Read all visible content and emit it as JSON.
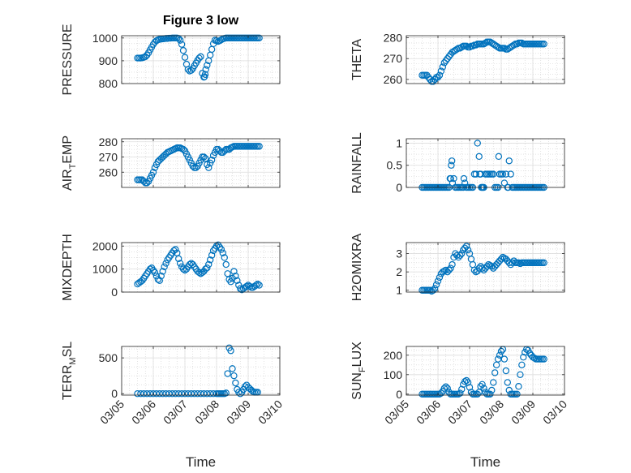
{
  "figure": {
    "xlabel": "Time",
    "marker_color": "#0072BD",
    "xticks": [
      "03/05",
      "03/06",
      "03/07",
      "03/08",
      "03/09",
      "03/10"
    ],
    "xlim": [
      0,
      5
    ]
  },
  "chart_data": [
    {
      "type": "scatter",
      "title": "Figure 3 low",
      "ylabel": "PRESSURE",
      "ylabel_sub": "",
      "ylabel_post": "",
      "ylim": [
        800,
        1010
      ],
      "yticks": [
        800,
        900,
        1000
      ],
      "ytick_labels": [
        "800",
        "900",
        "1000"
      ],
      "show_xticklabels": false,
      "grid": "on",
      "x": [
        0.5,
        0.55,
        0.6,
        0.65,
        0.7,
        0.75,
        0.8,
        0.85,
        0.9,
        0.95,
        1.0,
        1.05,
        1.1,
        1.15,
        1.2,
        1.25,
        1.3,
        1.35,
        1.4,
        1.45,
        1.5,
        1.55,
        1.6,
        1.65,
        1.7,
        1.75,
        1.8,
        1.85,
        1.9,
        1.95,
        2.0,
        2.05,
        2.1,
        2.15,
        2.2,
        2.25,
        2.3,
        2.35,
        2.4,
        2.45,
        2.5,
        2.55,
        2.6,
        2.62,
        2.64,
        2.66,
        2.7,
        2.75,
        2.8,
        2.85,
        2.9,
        2.95,
        3.0,
        3.05,
        3.1,
        3.15,
        3.2,
        3.25,
        3.3,
        3.35,
        3.4,
        3.45,
        3.5,
        3.55,
        3.6,
        3.65,
        3.7,
        3.75,
        3.8,
        3.85,
        3.9,
        3.95,
        4.0,
        4.05,
        4.1,
        4.15,
        4.2,
        4.25,
        4.3,
        4.35
      ],
      "y": [
        912,
        912,
        912,
        913,
        915,
        918,
        925,
        935,
        948,
        960,
        972,
        982,
        988,
        992,
        994,
        995,
        996,
        997,
        998,
        998,
        999,
        999,
        1000,
        1000,
        1000,
        1000,
        998,
        990,
        972,
        945,
        915,
        885,
        862,
        855,
        858,
        866,
        878,
        890,
        902,
        912,
        918,
        845,
        828,
        830,
        840,
        862,
        880,
        900,
        925,
        950,
        975,
        990,
        988,
        985,
        988,
        992,
        996,
        998,
        1000,
        1000,
        1000,
        1000,
        1000,
        1000,
        1000,
        1000,
        1000,
        1000,
        1000,
        1000,
        1000,
        1000,
        1000,
        1000,
        1000,
        1000,
        1000,
        1000,
        1000,
        1000
      ]
    },
    {
      "type": "scatter",
      "title": "",
      "ylabel": "THETA",
      "ylabel_sub": "",
      "ylabel_post": "",
      "ylim": [
        258,
        281
      ],
      "yticks": [
        260,
        270,
        280
      ],
      "ytick_labels": [
        "260",
        "270",
        "280"
      ],
      "show_xticklabels": false,
      "grid": "on",
      "x": [
        0.5,
        0.55,
        0.6,
        0.65,
        0.7,
        0.75,
        0.8,
        0.85,
        0.9,
        0.95,
        1.0,
        1.05,
        1.1,
        1.15,
        1.2,
        1.25,
        1.3,
        1.35,
        1.4,
        1.45,
        1.5,
        1.55,
        1.6,
        1.65,
        1.7,
        1.75,
        1.8,
        1.85,
        1.9,
        1.95,
        2.0,
        2.05,
        2.1,
        2.15,
        2.2,
        2.25,
        2.3,
        2.35,
        2.4,
        2.45,
        2.5,
        2.55,
        2.6,
        2.65,
        2.7,
        2.75,
        2.8,
        2.85,
        2.9,
        2.95,
        3.0,
        3.05,
        3.1,
        3.15,
        3.2,
        3.25,
        3.3,
        3.35,
        3.4,
        3.45,
        3.5,
        3.55,
        3.6,
        3.65,
        3.7,
        3.75,
        3.8,
        3.85,
        3.9,
        3.95,
        4.0,
        4.05,
        4.1,
        4.15,
        4.2,
        4.25,
        4.3,
        4.35
      ],
      "y": [
        262,
        262,
        262,
        262,
        261,
        260,
        259,
        259,
        260,
        261,
        261,
        262,
        264,
        266,
        268,
        269,
        270,
        271,
        272,
        273,
        273.5,
        274,
        274.5,
        275,
        275,
        275.5,
        276,
        276,
        276,
        275.5,
        275.5,
        276,
        276,
        276.5,
        276.5,
        277,
        277,
        277,
        277,
        277,
        277.5,
        278,
        278,
        278,
        277.5,
        277,
        276.5,
        276,
        275.5,
        275,
        275,
        275,
        275,
        274.5,
        274.5,
        275,
        275.5,
        276,
        276.5,
        277,
        277,
        277.5,
        277.5,
        277.5,
        277,
        277,
        277,
        277,
        277,
        277,
        277,
        277,
        277,
        277,
        277,
        277,
        277,
        277
      ]
    },
    {
      "type": "scatter",
      "title": "",
      "ylabel": "AIR",
      "ylabel_sub": "T",
      "ylabel_post": "EMP",
      "ylim": [
        250,
        282
      ],
      "yticks": [
        260,
        270,
        280
      ],
      "ytick_labels": [
        "260",
        "270",
        "280"
      ],
      "show_xticklabels": false,
      "grid": "on",
      "x": [
        0.5,
        0.55,
        0.6,
        0.65,
        0.7,
        0.75,
        0.8,
        0.85,
        0.9,
        0.95,
        1.0,
        1.05,
        1.1,
        1.15,
        1.2,
        1.25,
        1.3,
        1.35,
        1.4,
        1.45,
        1.5,
        1.55,
        1.6,
        1.65,
        1.7,
        1.75,
        1.8,
        1.85,
        1.9,
        1.95,
        2.0,
        2.05,
        2.1,
        2.15,
        2.2,
        2.25,
        2.3,
        2.35,
        2.4,
        2.45,
        2.5,
        2.55,
        2.6,
        2.65,
        2.7,
        2.75,
        2.8,
        2.85,
        2.9,
        2.95,
        3.0,
        3.05,
        3.1,
        3.15,
        3.2,
        3.25,
        3.3,
        3.35,
        3.4,
        3.45,
        3.5,
        3.55,
        3.6,
        3.65,
        3.7,
        3.75,
        3.8,
        3.85,
        3.9,
        3.95,
        4.0,
        4.05,
        4.1,
        4.15,
        4.2,
        4.25,
        4.3,
        4.35
      ],
      "y": [
        255,
        255,
        255,
        255,
        254,
        253,
        253,
        254,
        256,
        258,
        260,
        263,
        265,
        267,
        268,
        269,
        270,
        271,
        272,
        273,
        273.5,
        274,
        274.5,
        275,
        275.5,
        276,
        276,
        276,
        275.5,
        275,
        274,
        272,
        270,
        268,
        266,
        264,
        263,
        263,
        264,
        266,
        268,
        270,
        270,
        269,
        265,
        263,
        266,
        268,
        271,
        273,
        275,
        275,
        274,
        273,
        273,
        274,
        275,
        275,
        275,
        276,
        276.5,
        277,
        277,
        277,
        277,
        277,
        277,
        277,
        277,
        277,
        277,
        277,
        277,
        277,
        277,
        277,
        277,
        277
      ]
    },
    {
      "type": "scatter",
      "title": "",
      "ylabel": "RAINFALL",
      "ylabel_sub": "",
      "ylabel_post": "",
      "ylim": [
        0,
        1.1
      ],
      "yticks": [
        0,
        0.5,
        1
      ],
      "ytick_labels": [
        "0",
        "0.5",
        "1"
      ],
      "show_xticklabels": false,
      "grid": "on",
      "x": [
        0.5,
        0.55,
        0.6,
        0.65,
        0.7,
        0.75,
        0.8,
        0.85,
        0.9,
        0.95,
        1.0,
        1.05,
        1.1,
        1.15,
        1.2,
        1.25,
        1.3,
        1.35,
        1.38,
        1.4,
        1.42,
        1.44,
        1.46,
        1.5,
        1.55,
        1.6,
        1.65,
        1.7,
        1.75,
        1.8,
        1.82,
        1.85,
        1.9,
        1.95,
        2.0,
        2.05,
        2.1,
        2.15,
        2.2,
        2.25,
        2.3,
        2.32,
        2.35,
        2.37,
        2.4,
        2.42,
        2.45,
        2.5,
        2.55,
        2.6,
        2.65,
        2.7,
        2.75,
        2.8,
        2.85,
        2.9,
        2.92,
        2.95,
        3.0,
        3.05,
        3.1,
        3.15,
        3.2,
        3.22,
        3.25,
        3.3,
        3.35,
        3.4,
        3.45,
        3.5,
        3.55,
        3.6,
        3.65,
        3.7,
        3.75,
        3.8,
        3.85,
        3.9,
        3.95,
        4.0,
        4.05,
        4.1,
        4.15,
        4.2,
        4.25,
        4.3,
        4.35
      ],
      "y": [
        0,
        0,
        0,
        0,
        0,
        0,
        0,
        0,
        0,
        0,
        0,
        0,
        0,
        0,
        0,
        0,
        0,
        0,
        0.2,
        0.2,
        0.5,
        0.6,
        0.1,
        0.2,
        0,
        0,
        0,
        0,
        0,
        0,
        0.2,
        0.1,
        0,
        0,
        0,
        0,
        0,
        0.3,
        0.3,
        1.0,
        0.7,
        0.3,
        0.3,
        0,
        0,
        0,
        0,
        0.3,
        0.3,
        0.3,
        0.3,
        0.3,
        0.3,
        0,
        0,
        0,
        0.7,
        0.3,
        0.3,
        0.3,
        0.1,
        0.3,
        0,
        0,
        0.6,
        0.3,
        0,
        0,
        0,
        0,
        0,
        0,
        0,
        0,
        0,
        0,
        0,
        0,
        0,
        0,
        0,
        0,
        0,
        0,
        0,
        0,
        0
      ]
    },
    {
      "type": "scatter",
      "title": "",
      "ylabel": "MIXDEPTH",
      "ylabel_sub": "",
      "ylabel_post": "",
      "ylim": [
        0,
        2150
      ],
      "yticks": [
        0,
        1000,
        2000
      ],
      "ytick_labels": [
        "0",
        "1000",
        "2000"
      ],
      "show_xticklabels": false,
      "grid": "on",
      "x": [
        0.5,
        0.55,
        0.6,
        0.65,
        0.7,
        0.75,
        0.8,
        0.85,
        0.9,
        0.95,
        1.0,
        1.05,
        1.1,
        1.15,
        1.2,
        1.25,
        1.3,
        1.35,
        1.4,
        1.45,
        1.5,
        1.55,
        1.6,
        1.65,
        1.7,
        1.75,
        1.8,
        1.85,
        1.9,
        1.95,
        2.0,
        2.05,
        2.1,
        2.15,
        2.2,
        2.25,
        2.3,
        2.35,
        2.4,
        2.45,
        2.5,
        2.55,
        2.6,
        2.65,
        2.7,
        2.75,
        2.8,
        2.85,
        2.9,
        2.95,
        3.0,
        3.05,
        3.1,
        3.15,
        3.2,
        3.25,
        3.3,
        3.35,
        3.4,
        3.45,
        3.5,
        3.55,
        3.6,
        3.65,
        3.7,
        3.75,
        3.8,
        3.85,
        3.9,
        3.95,
        4.0,
        4.05,
        4.1,
        4.15,
        4.2,
        4.25,
        4.3,
        4.35
      ],
      "y": [
        350,
        400,
        450,
        500,
        600,
        700,
        800,
        900,
        1000,
        1050,
        950,
        850,
        700,
        550,
        500,
        700,
        900,
        1100,
        1250,
        1400,
        1500,
        1600,
        1700,
        1800,
        1850,
        1700,
        1450,
        1250,
        1100,
        1000,
        950,
        1000,
        1100,
        1200,
        1250,
        1200,
        1100,
        1000,
        900,
        850,
        800,
        850,
        900,
        1000,
        1050,
        1200,
        1400,
        1600,
        1800,
        1900,
        2000,
        2050,
        1950,
        1850,
        1700,
        1500,
        1200,
        800,
        550,
        450,
        600,
        900,
        700,
        500,
        300,
        150,
        100,
        150,
        200,
        250,
        300,
        250,
        200,
        200,
        250,
        300,
        350,
        300
      ]
    },
    {
      "type": "scatter",
      "title": "",
      "ylabel": "H2OMIXRA",
      "ylabel_sub": "",
      "ylabel_post": "",
      "ylim": [
        0.9,
        3.6
      ],
      "yticks": [
        1,
        2,
        3
      ],
      "ytick_labels": [
        "1",
        "2",
        "3"
      ],
      "show_xticklabels": false,
      "grid": "on",
      "x": [
        0.5,
        0.55,
        0.6,
        0.65,
        0.7,
        0.75,
        0.8,
        0.85,
        0.9,
        0.95,
        1.0,
        1.05,
        1.1,
        1.15,
        1.2,
        1.25,
        1.3,
        1.35,
        1.4,
        1.45,
        1.5,
        1.55,
        1.6,
        1.65,
        1.7,
        1.75,
        1.8,
        1.85,
        1.9,
        1.95,
        2.0,
        2.05,
        2.1,
        2.15,
        2.2,
        2.25,
        2.3,
        2.35,
        2.4,
        2.45,
        2.5,
        2.55,
        2.6,
        2.65,
        2.7,
        2.75,
        2.8,
        2.85,
        2.9,
        2.95,
        3.0,
        3.05,
        3.1,
        3.15,
        3.2,
        3.25,
        3.3,
        3.35,
        3.4,
        3.45,
        3.5,
        3.55,
        3.6,
        3.65,
        3.7,
        3.75,
        3.8,
        3.85,
        3.9,
        3.95,
        4.0,
        4.05,
        4.1,
        4.15,
        4.2,
        4.25,
        4.3,
        4.35
      ],
      "y": [
        1.0,
        1.0,
        1.0,
        1.0,
        1.0,
        1.0,
        0.95,
        1.0,
        1.1,
        1.3,
        1.5,
        1.7,
        1.9,
        2.0,
        2.05,
        2.1,
        2.0,
        2.1,
        2.2,
        2.4,
        2.8,
        3.0,
        2.9,
        2.8,
        2.9,
        3.0,
        3.2,
        3.3,
        3.4,
        3.2,
        3.0,
        2.7,
        2.4,
        2.1,
        2.0,
        2.05,
        2.2,
        2.3,
        2.2,
        2.1,
        2.2,
        2.3,
        2.4,
        2.35,
        2.3,
        2.2,
        2.3,
        2.4,
        2.5,
        2.6,
        2.7,
        2.8,
        2.75,
        2.7,
        2.6,
        2.5,
        2.4,
        2.5,
        2.6,
        2.5,
        2.5,
        2.5,
        2.45,
        2.5,
        2.5,
        2.5,
        2.5,
        2.5,
        2.5,
        2.5,
        2.5,
        2.5,
        2.5,
        2.5,
        2.5,
        2.5,
        2.5,
        2.5
      ]
    },
    {
      "type": "scatter",
      "title": "",
      "ylabel": "TERR",
      "ylabel_sub": "M",
      "ylabel_post": "SL",
      "ylim": [
        -20,
        660
      ],
      "yticks": [
        0,
        500
      ],
      "ytick_labels": [
        "0",
        "500"
      ],
      "show_xticklabels": true,
      "grid": "on",
      "x": [
        0.5,
        0.6,
        0.7,
        0.8,
        0.9,
        1.0,
        1.1,
        1.2,
        1.3,
        1.4,
        1.5,
        1.6,
        1.7,
        1.8,
        1.9,
        2.0,
        2.1,
        2.2,
        2.3,
        2.4,
        2.5,
        2.6,
        2.7,
        2.8,
        2.9,
        3.0,
        3.05,
        3.1,
        3.15,
        3.2,
        3.25,
        3.3,
        3.35,
        3.4,
        3.45,
        3.5,
        3.55,
        3.6,
        3.65,
        3.7,
        3.75,
        3.8,
        3.85,
        3.9,
        3.95,
        4.0,
        4.05,
        4.1,
        4.15,
        4.2,
        4.25,
        4.3
      ],
      "y": [
        0,
        0,
        0,
        0,
        0,
        0,
        0,
        0,
        0,
        0,
        0,
        0,
        0,
        0,
        0,
        0,
        0,
        0,
        0,
        0,
        0,
        0,
        0,
        0,
        0,
        0,
        0,
        0,
        0,
        0,
        0,
        10,
        280,
        640,
        600,
        350,
        250,
        150,
        60,
        20,
        0,
        20,
        60,
        100,
        120,
        90,
        70,
        50,
        30,
        20,
        20,
        20
      ]
    },
    {
      "type": "scatter",
      "title": "",
      "ylabel": "SUN",
      "ylabel_sub": "F",
      "ylabel_post": "LUX",
      "ylim": [
        -5,
        245
      ],
      "yticks": [
        0,
        100,
        200
      ],
      "ytick_labels": [
        "0",
        "100",
        "200"
      ],
      "show_xticklabels": true,
      "grid": "on",
      "x": [
        0.5,
        0.55,
        0.6,
        0.65,
        0.7,
        0.75,
        0.8,
        0.85,
        0.9,
        0.95,
        1.0,
        1.05,
        1.1,
        1.15,
        1.2,
        1.25,
        1.3,
        1.35,
        1.4,
        1.45,
        1.5,
        1.55,
        1.6,
        1.65,
        1.7,
        1.75,
        1.8,
        1.85,
        1.9,
        1.95,
        2.0,
        2.05,
        2.1,
        2.15,
        2.2,
        2.25,
        2.3,
        2.35,
        2.4,
        2.45,
        2.5,
        2.55,
        2.6,
        2.65,
        2.7,
        2.75,
        2.8,
        2.85,
        2.9,
        2.95,
        3.0,
        3.05,
        3.1,
        3.15,
        3.2,
        3.25,
        3.3,
        3.35,
        3.4,
        3.45,
        3.5,
        3.55,
        3.6,
        3.65,
        3.7,
        3.75,
        3.8,
        3.85,
        3.9,
        3.95,
        4.0,
        4.05,
        4.1,
        4.15,
        4.2,
        4.25,
        4.3,
        4.35
      ],
      "y": [
        0,
        0,
        0,
        0,
        0,
        0,
        0,
        0,
        0,
        0,
        0,
        0,
        5,
        15,
        30,
        38,
        30,
        10,
        0,
        0,
        0,
        0,
        0,
        0,
        5,
        25,
        50,
        65,
        70,
        60,
        35,
        10,
        0,
        0,
        0,
        0,
        10,
        40,
        50,
        30,
        10,
        0,
        0,
        0,
        20,
        60,
        110,
        150,
        180,
        200,
        220,
        230,
        180,
        120,
        60,
        20,
        0,
        0,
        0,
        0,
        0,
        40,
        100,
        150,
        190,
        215,
        230,
        225,
        210,
        200,
        190,
        185,
        180,
        180,
        180,
        180,
        180,
        180
      ]
    }
  ]
}
